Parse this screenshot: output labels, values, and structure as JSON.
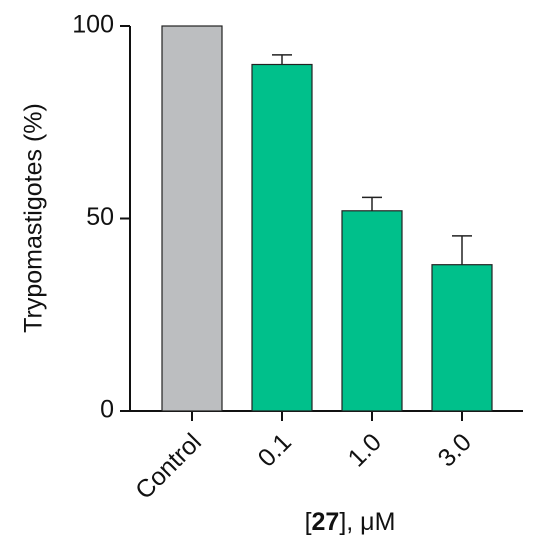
{
  "chart_data": {
    "type": "bar",
    "ylabel": "Trypomastigotes (%)",
    "xlabel": [
      "[",
      "27",
      "], μM"
    ],
    "categories": [
      "Control",
      "0.1",
      "1.0",
      "3.0"
    ],
    "values": [
      100,
      90,
      52,
      38
    ],
    "errors": [
      null,
      2.5,
      3.5,
      7.5
    ],
    "colors": [
      "#bcbec0",
      "#00c08b",
      "#00c08b",
      "#00c08b"
    ],
    "ylim": [
      0,
      100
    ],
    "yticks": [
      0,
      50,
      100
    ]
  }
}
